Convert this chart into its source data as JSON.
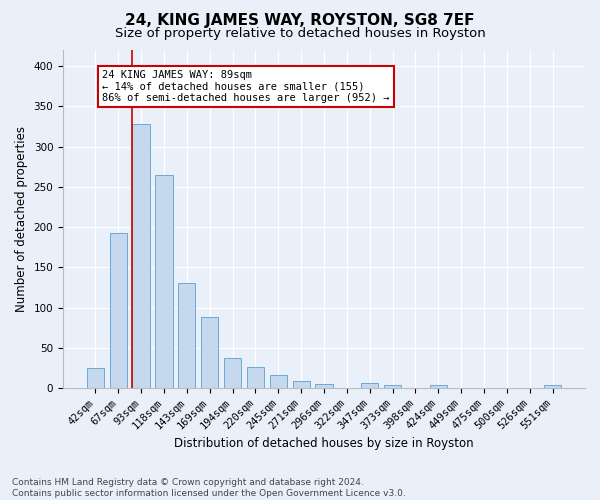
{
  "title": "24, KING JAMES WAY, ROYSTON, SG8 7EF",
  "subtitle": "Size of property relative to detached houses in Royston",
  "xlabel": "Distribution of detached houses by size in Royston",
  "ylabel": "Number of detached properties",
  "categories": [
    "42sqm",
    "67sqm",
    "93sqm",
    "118sqm",
    "143sqm",
    "169sqm",
    "194sqm",
    "220sqm",
    "245sqm",
    "271sqm",
    "296sqm",
    "322sqm",
    "347sqm",
    "373sqm",
    "398sqm",
    "424sqm",
    "449sqm",
    "475sqm",
    "500sqm",
    "526sqm",
    "551sqm"
  ],
  "values": [
    25,
    193,
    328,
    265,
    130,
    88,
    37,
    26,
    16,
    9,
    5,
    0,
    6,
    4,
    0,
    4,
    0,
    0,
    0,
    0,
    4
  ],
  "bar_color": "#c5d8ee",
  "bar_edgecolor": "#6aaad4",
  "bg_color": "#eaf0f9",
  "grid_color": "#ffffff",
  "vline_color": "#cc0000",
  "vline_xindex": 2,
  "annotation_text": "24 KING JAMES WAY: 89sqm\n← 14% of detached houses are smaller (155)\n86% of semi-detached houses are larger (952) →",
  "annotation_box_color": "#ffffff",
  "annotation_box_edgecolor": "#cc0000",
  "footer_text": "Contains HM Land Registry data © Crown copyright and database right 2024.\nContains public sector information licensed under the Open Government Licence v3.0.",
  "ylim": [
    0,
    420
  ],
  "yticks": [
    0,
    50,
    100,
    150,
    200,
    250,
    300,
    350,
    400
  ],
  "title_fontsize": 11,
  "subtitle_fontsize": 9.5,
  "label_fontsize": 8.5,
  "tick_fontsize": 7.5,
  "footer_fontsize": 6.5,
  "bar_width": 0.75
}
